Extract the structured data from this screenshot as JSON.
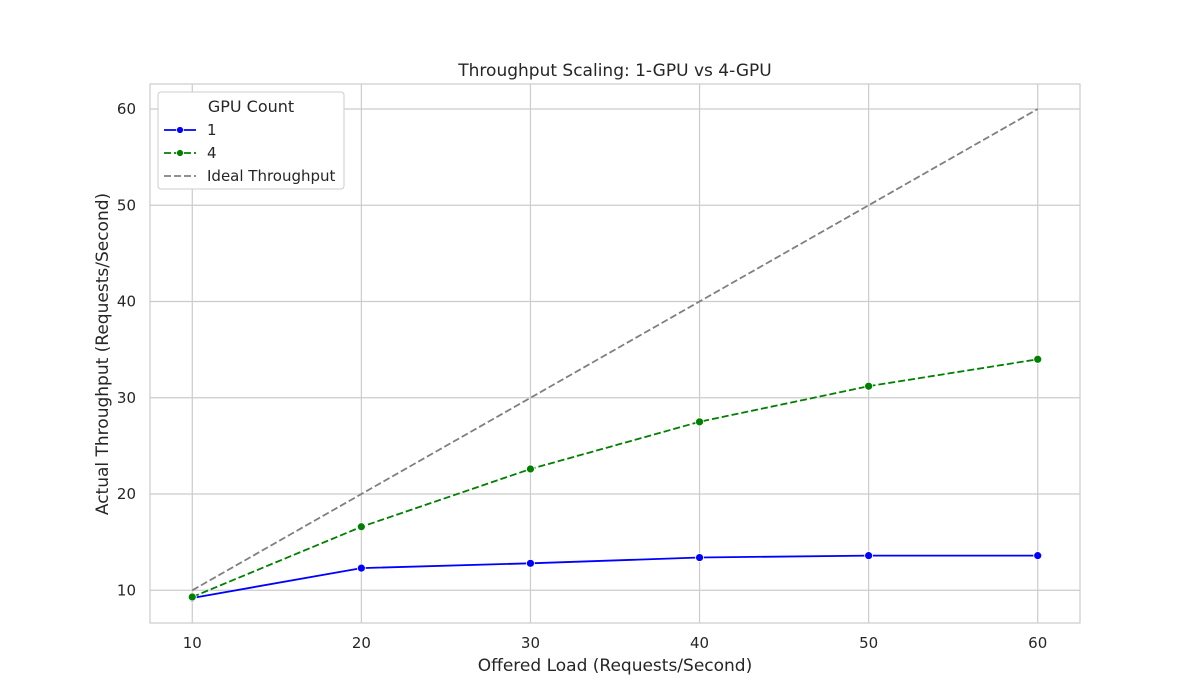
{
  "chart_data": {
    "type": "line",
    "title": "Throughput Scaling: 1-GPU vs 4-GPU",
    "xlabel": "Offered Load (Requests/Second)",
    "ylabel": "Actual Throughput (Requests/Second)",
    "x": [
      10,
      20,
      30,
      40,
      50,
      60
    ],
    "xlim": [
      7.5,
      62.5
    ],
    "ylim": [
      6.6,
      62.6
    ],
    "xticks": [
      10,
      20,
      30,
      40,
      50,
      60
    ],
    "yticks": [
      10,
      20,
      30,
      40,
      50,
      60
    ],
    "grid": true,
    "legend": {
      "title": "GPU Count",
      "placement": "top-left"
    },
    "series": [
      {
        "name": "1",
        "values": [
          9.2,
          12.3,
          12.8,
          13.4,
          13.6,
          13.6
        ],
        "color": "#0000ff",
        "style": "solid",
        "marker": "circle"
      },
      {
        "name": "4",
        "values": [
          9.3,
          16.6,
          22.6,
          27.5,
          31.2,
          34.0
        ],
        "color": "#008000",
        "style": "dashed",
        "marker": "circle"
      },
      {
        "name": "Ideal Throughput",
        "values": [
          10,
          20,
          30,
          40,
          50,
          60
        ],
        "color": "#808080",
        "style": "dashed",
        "marker": "none"
      }
    ]
  }
}
